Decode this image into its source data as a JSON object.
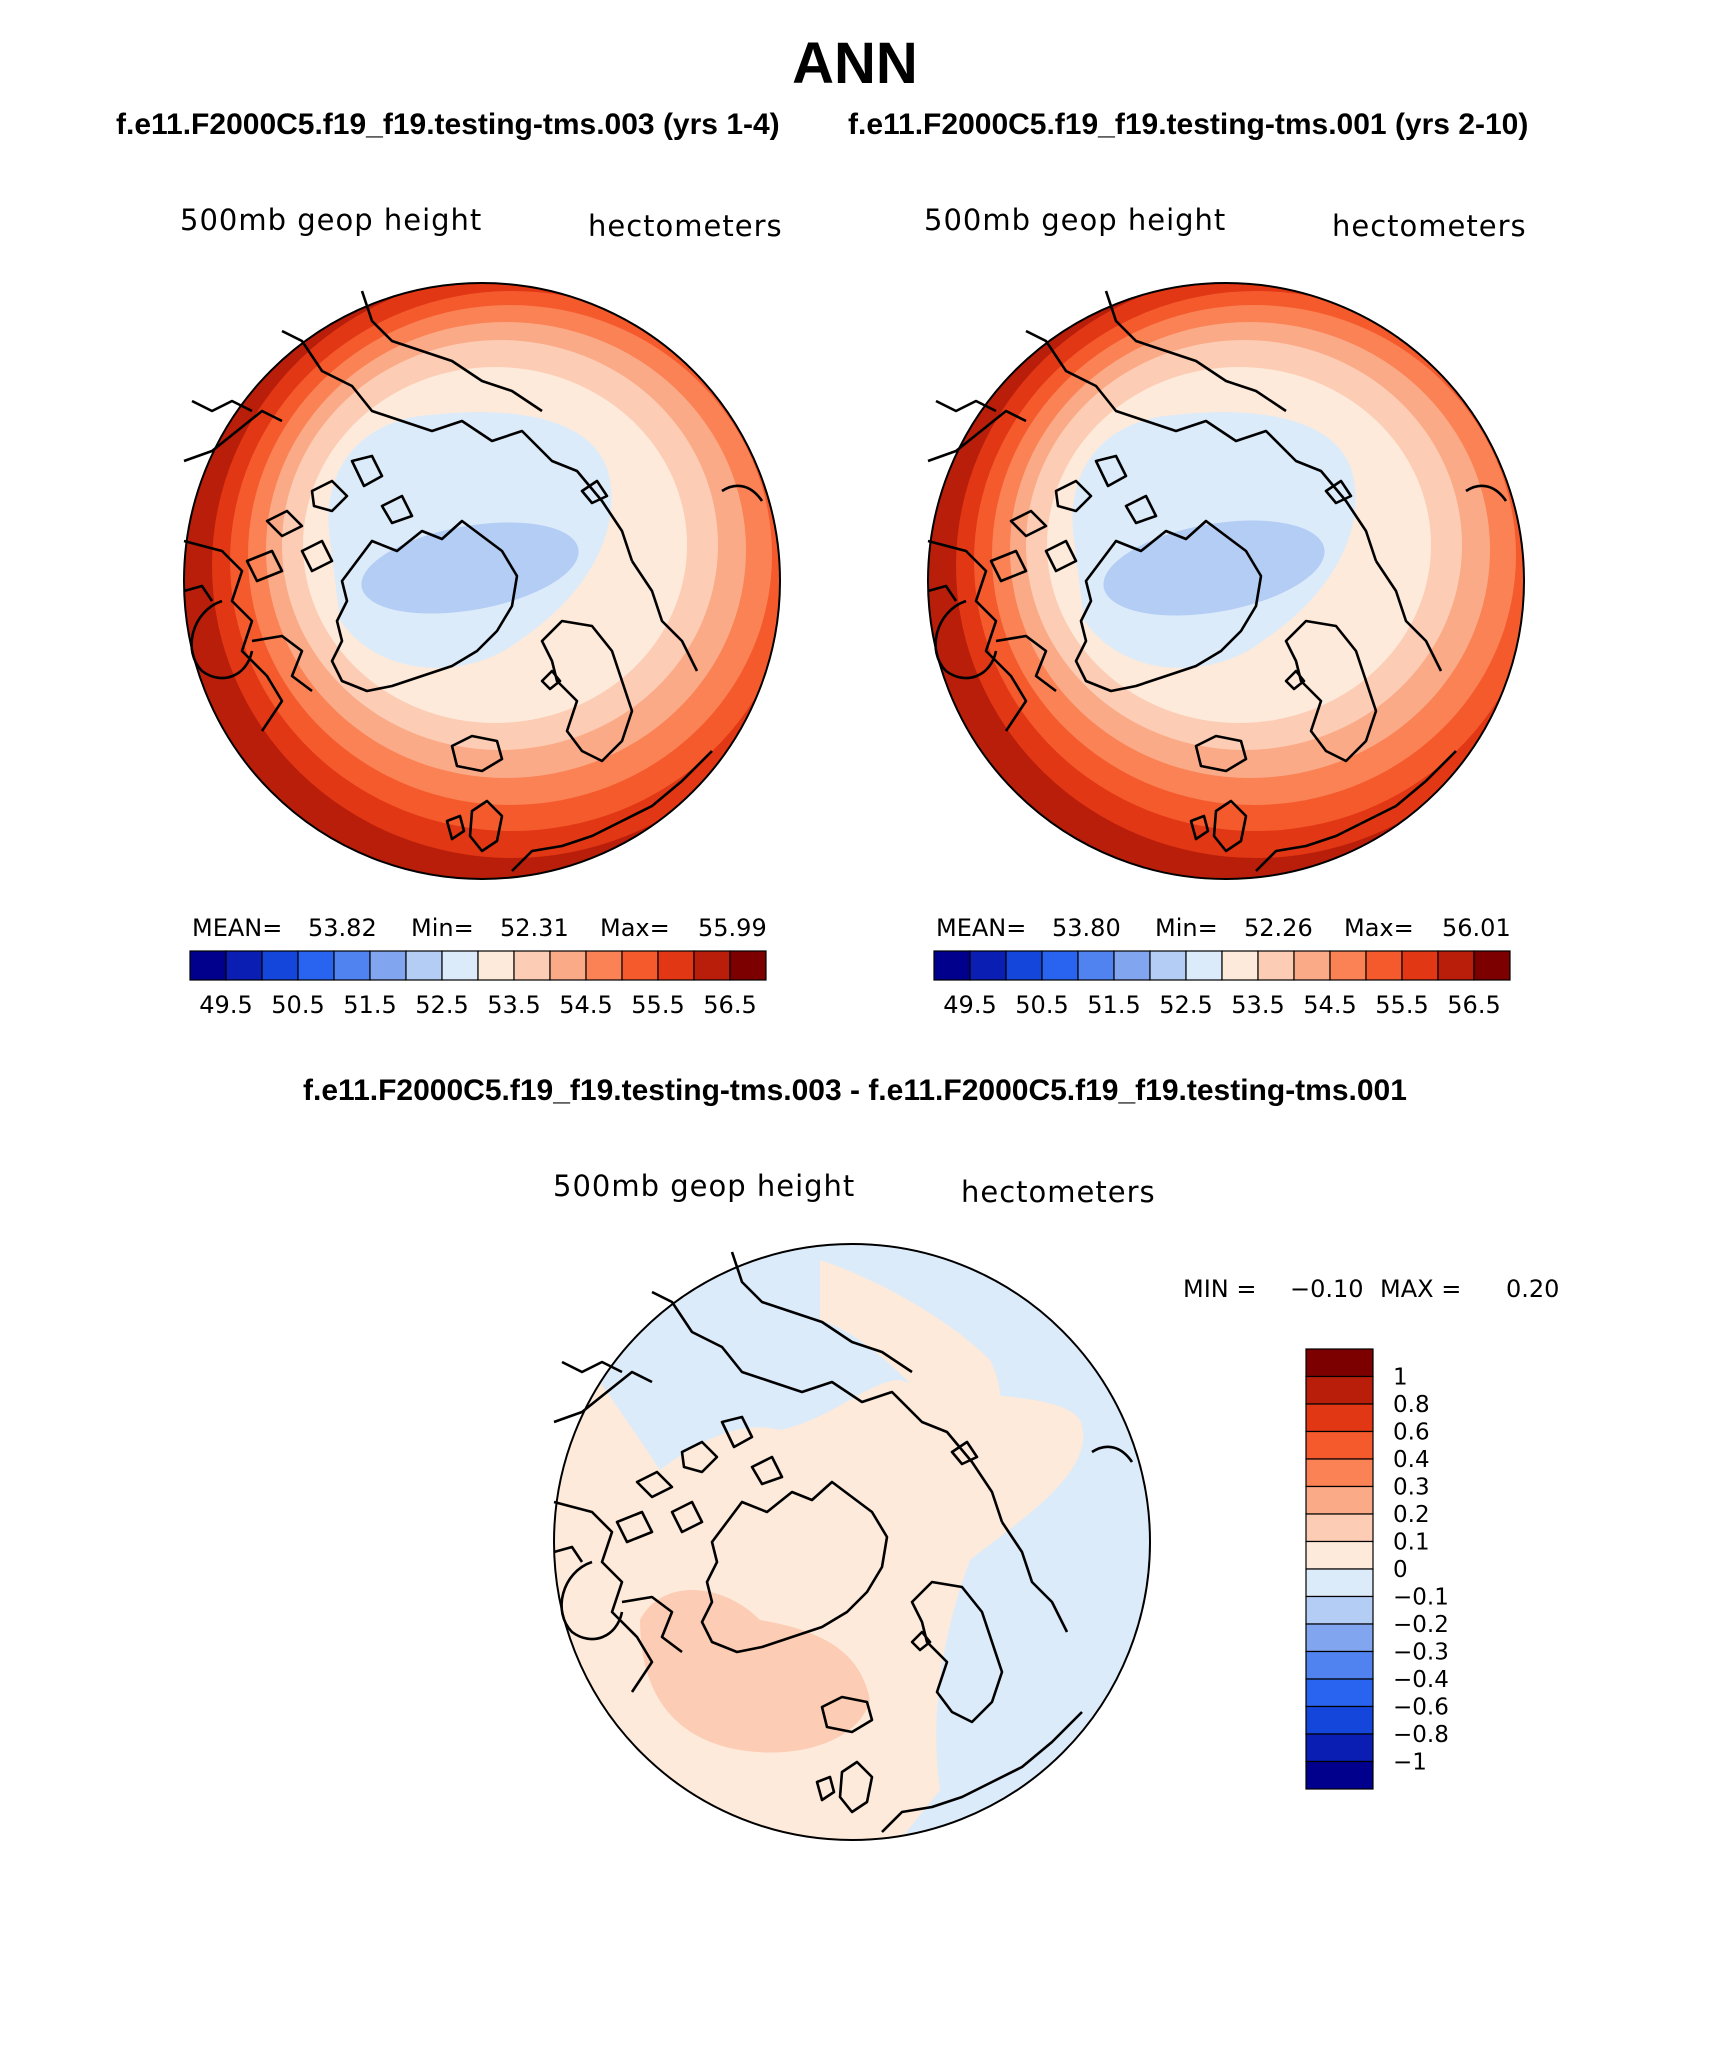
{
  "title": "ANN",
  "case_titles": {
    "left": "f.e11.F2000C5.f19_f19.testing-tms.003 (yrs 1-4)",
    "right": "f.e11.F2000C5.f19_f19.testing-tms.001 (yrs 2-10)"
  },
  "diff_title": "f.e11.F2000C5.f19_f19.testing-tms.003 - f.e11.F2000C5.f19_f19.testing-tms.001",
  "panels": [
    {
      "variable": "500mb geop height",
      "units": "hectometers",
      "stats": {
        "mean_label": "MEAN=",
        "mean": "53.82",
        "min_label": "Min=",
        "min": "52.31",
        "max_label": "Max=",
        "max": "55.99"
      },
      "colorbar_ticks": [
        "49.5",
        "50.5",
        "51.5",
        "52.5",
        "53.5",
        "54.5",
        "55.5",
        "56.5"
      ]
    },
    {
      "variable": "500mb geop height",
      "units": "hectometers",
      "stats": {
        "mean_label": "MEAN=",
        "mean": "53.80",
        "min_label": "Min=",
        "min": "52.26",
        "max_label": "Max=",
        "max": "56.01"
      },
      "colorbar_ticks": [
        "49.5",
        "50.5",
        "51.5",
        "52.5",
        "53.5",
        "54.5",
        "55.5",
        "56.5"
      ]
    }
  ],
  "diff_panel": {
    "variable": "500mb geop height",
    "units": "hectometers",
    "stats": {
      "min_label": "MIN =",
      "min": "−0.10",
      "max_label": "MAX =",
      "max": "0.20"
    },
    "colorbar_ticks": [
      "1",
      "0.8",
      "0.6",
      "0.4",
      "0.3",
      "0.2",
      "0.1",
      "0",
      "−0.1",
      "−0.2",
      "−0.3",
      "−0.4",
      "−0.6",
      "−0.8",
      "−1"
    ]
  },
  "colors": {
    "abs_palette": [
      "#00008c",
      "#0a1eb4",
      "#1446dc",
      "#2864f0",
      "#5082f0",
      "#82a5f0",
      "#b4cdf5",
      "#dcebfa",
      "#fdeada",
      "#fccdb4",
      "#fbaa87",
      "#fa8255",
      "#f55a2d",
      "#e13714",
      "#b91e0a",
      "#7d0000"
    ],
    "diff_palette": [
      "#7d0000",
      "#b91e0a",
      "#e13714",
      "#f55a2d",
      "#fa8255",
      "#fbaa87",
      "#fccdb4",
      "#fdeada",
      "#dcebfa",
      "#b4cdf5",
      "#82a5f0",
      "#5082f0",
      "#2864f0",
      "#1446dc",
      "#0a1eb4",
      "#00008c"
    ]
  }
}
